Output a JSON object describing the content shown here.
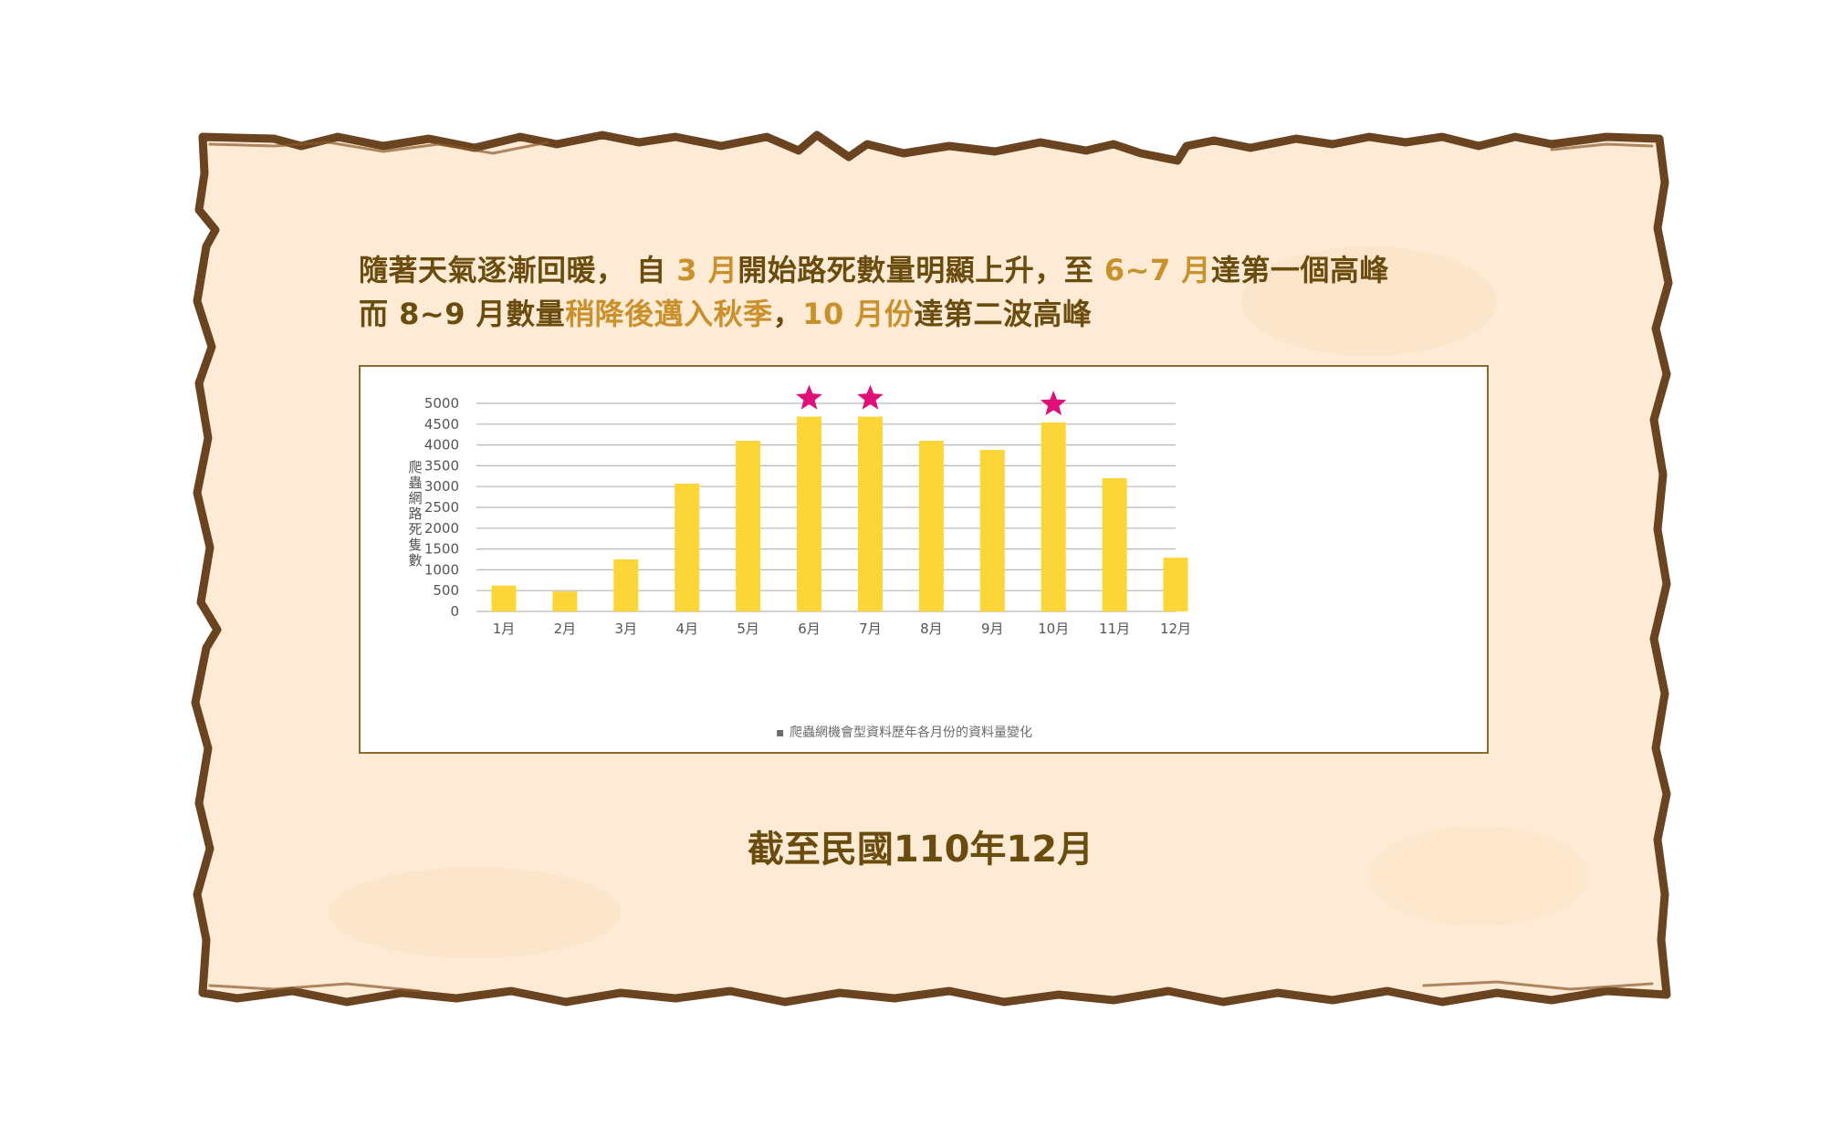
{
  "intro": {
    "line1": [
      {
        "text": "隨著天氣逐漸回暖， 自 ",
        "hl": false
      },
      {
        "text": "3 月",
        "hl": true
      },
      {
        "text": "開始路死數量明顯上升，至 ",
        "hl": false
      },
      {
        "text": "6~7 月",
        "hl": true
      },
      {
        "text": "達第一個高峰",
        "hl": false
      }
    ],
    "line2": [
      {
        "text": "而 8~9 月數量",
        "hl": false
      },
      {
        "text": "稍降後邁入秋季",
        "hl": true
      },
      {
        "text": "，",
        "hl": false
      },
      {
        "text": "10 月份",
        "hl": true
      },
      {
        "text": "達第二波高峰",
        "hl": false
      }
    ]
  },
  "colors": {
    "paper": "#fdebd6",
    "paper_border": "#6a4420",
    "bar": "#fcd537",
    "star": "#e0107a",
    "grid": "#b7b7b7",
    "text_dark": "#6b4c0f",
    "text_highlight": "#c8912b"
  },
  "chart_data": {
    "type": "bar",
    "categories": [
      "1月",
      "2月",
      "3月",
      "4月",
      "5月",
      "6月",
      "7月",
      "8月",
      "9月",
      "10月",
      "11月",
      "12月"
    ],
    "values": [
      620,
      480,
      1250,
      3070,
      4100,
      4680,
      4680,
      4100,
      3880,
      4540,
      3200,
      1290
    ],
    "ylabel": "爬蟲網路死隻數",
    "ylim": [
      0,
      5000
    ],
    "yticks": [
      0,
      500,
      1000,
      1500,
      2000,
      2500,
      3000,
      3500,
      4000,
      4500,
      5000
    ],
    "grid": true,
    "starred_categories": [
      "6月",
      "7月",
      "10月"
    ],
    "caption": "爬蟲網機會型資料歷年各月份的資料量變化"
  },
  "footer": {
    "date_label": "截至民國110年12月"
  }
}
